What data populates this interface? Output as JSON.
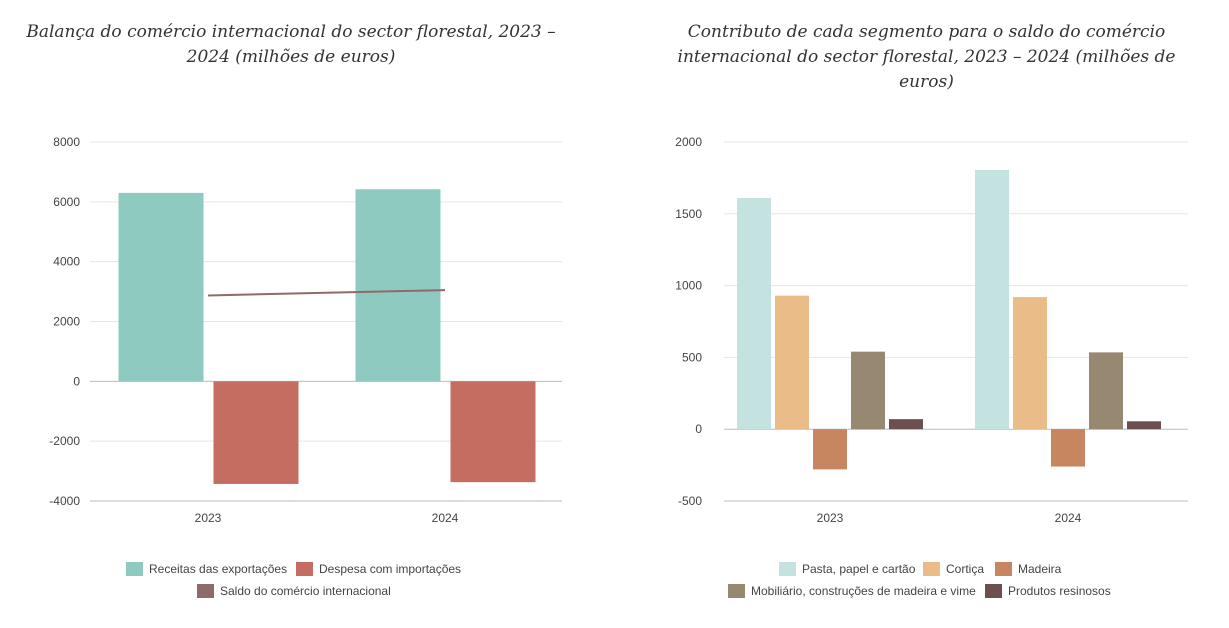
{
  "chart_data": [
    {
      "type": "bar",
      "title": "Balança do comércio internacional do sector florestal, 2023 – 2024 (milhões de euros)",
      "categories": [
        "2023",
        "2024"
      ],
      "ylim": [
        -4000,
        8000
      ],
      "yticks": [
        8000,
        6000,
        4000,
        2000,
        0,
        -2000,
        -4000
      ],
      "grid": true,
      "legend_position": "bottom",
      "series": [
        {
          "name": "Receitas das exportações",
          "type": "bar",
          "color": "#8ecac0",
          "values": [
            6300,
            6420
          ]
        },
        {
          "name": "Despesa com importações",
          "type": "bar",
          "color": "#c56d60",
          "values": [
            -3430,
            -3370
          ]
        },
        {
          "name": "Saldo do comércio internacional",
          "type": "line",
          "color": "#8e6b68",
          "values": [
            2870,
            3050
          ]
        }
      ]
    },
    {
      "type": "bar",
      "title": "Contributo de cada segmento para o saldo do comércio internacional do sector florestal, 2023 – 2024 (milhões de euros)",
      "categories": [
        "2023",
        "2024"
      ],
      "ylim": [
        -500,
        2000
      ],
      "yticks": [
        2000,
        1500,
        1000,
        500,
        0,
        -500
      ],
      "grid": true,
      "legend_position": "bottom",
      "series": [
        {
          "name": "Pasta, papel e cartão",
          "type": "bar",
          "color": "#c3e2e0",
          "values": [
            1610,
            1805
          ]
        },
        {
          "name": "Cortiça",
          "type": "bar",
          "color": "#e9bc88",
          "values": [
            930,
            920
          ]
        },
        {
          "name": "Madeira",
          "type": "bar",
          "color": "#c78560",
          "values": [
            -280,
            -260
          ]
        },
        {
          "name": "Mobiliário, construções de madeira e vime",
          "type": "bar",
          "color": "#978872",
          "values": [
            540,
            535
          ]
        },
        {
          "name": "Produtos resinosos",
          "type": "bar",
          "color": "#6e4f4f",
          "values": [
            70,
            55
          ]
        }
      ]
    }
  ]
}
